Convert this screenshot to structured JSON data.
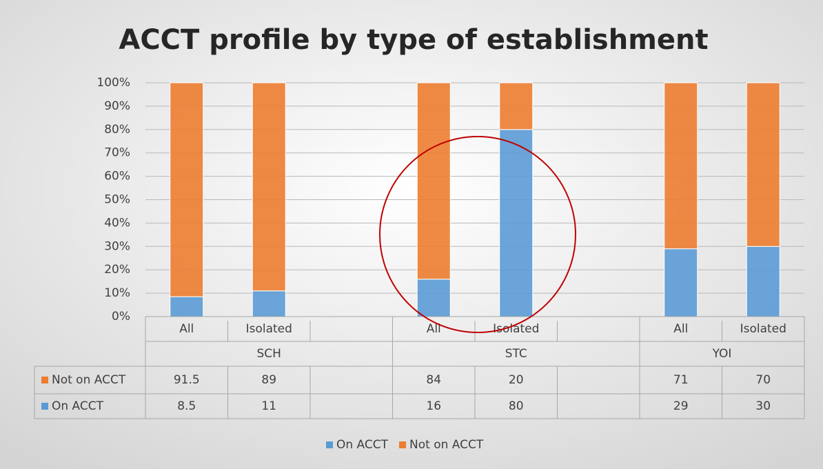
{
  "chart_data": {
    "type": "stacked_bar",
    "title": "ACCT profile by type of establishment",
    "groups": [
      {
        "label": "SCH",
        "categories": [
          "All",
          "Isolated",
          null
        ]
      },
      {
        "label": "STC",
        "categories": [
          "All",
          "Isolated",
          null
        ]
      },
      {
        "label": "YOI",
        "categories": [
          "All",
          "Isolated"
        ]
      }
    ],
    "series": [
      {
        "name": "On ACCT",
        "color": "#5b9bd5",
        "values": [
          8.5,
          11,
          null,
          16,
          80,
          null,
          29,
          30
        ]
      },
      {
        "name": "Not on ACCT",
        "color": "#ed7d31",
        "values": [
          91.5,
          89,
          null,
          84,
          20,
          null,
          71,
          70
        ]
      }
    ],
    "ylim": [
      0,
      100
    ],
    "yticks": [
      {
        "value": 0,
        "label": "0%"
      },
      {
        "value": 10,
        "label": "10%"
      },
      {
        "value": 20,
        "label": "20%"
      },
      {
        "value": 30,
        "label": "30%"
      },
      {
        "value": 40,
        "label": "40%"
      },
      {
        "value": 50,
        "label": "50%"
      },
      {
        "value": 60,
        "label": "60%"
      },
      {
        "value": 70,
        "label": "70%"
      },
      {
        "value": 80,
        "label": "80%"
      },
      {
        "value": 90,
        "label": "90%"
      },
      {
        "value": 100,
        "label": "100%"
      }
    ],
    "grid": true,
    "legend": "bottom",
    "data_table": true
  }
}
